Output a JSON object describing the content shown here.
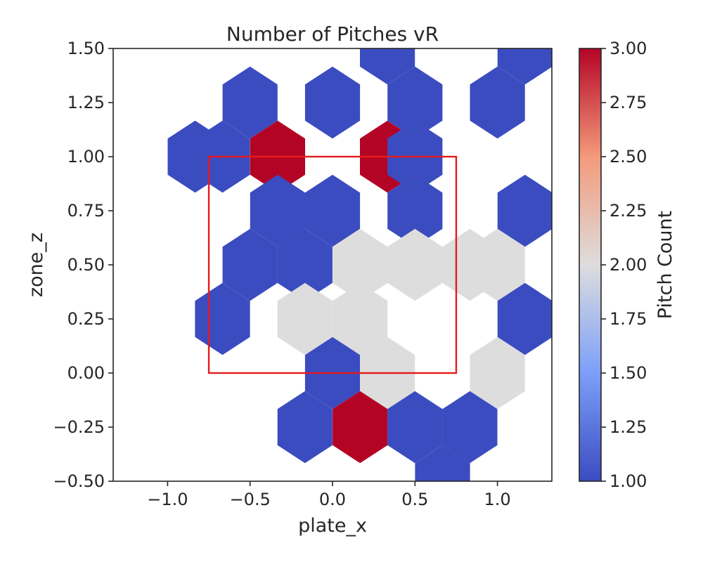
{
  "chart_data": {
    "type": "heatmap",
    "subtype": "hexbin",
    "title": "Number of Pitches vR",
    "xlabel": "plate_x",
    "ylabel": "zone_z",
    "xlim": [
      -1.33,
      1.33
    ],
    "ylim": [
      -0.5,
      1.5
    ],
    "xticks": [
      -1.0,
      -0.5,
      0.0,
      0.5,
      1.0
    ],
    "xtick_labels": [
      "−1.0",
      "−0.5",
      "0.0",
      "0.5",
      "1.0"
    ],
    "yticks": [
      -0.5,
      -0.25,
      0.0,
      0.25,
      0.5,
      0.75,
      1.0,
      1.25,
      1.5
    ],
    "ytick_labels": [
      "−0.50",
      "−0.25",
      "0.00",
      "0.25",
      "0.50",
      "0.75",
      "1.00",
      "1.25",
      "1.50"
    ],
    "hex_half_width": 0.1667,
    "hex_half_height": 0.1667,
    "hexbins": [
      {
        "x": -0.5,
        "y": 1.25,
        "count": 1
      },
      {
        "x": 0.0,
        "y": 1.25,
        "count": 1
      },
      {
        "x": 0.333,
        "y": 1.5,
        "count": 1
      },
      {
        "x": 0.5,
        "y": 1.25,
        "count": 1
      },
      {
        "x": 1.0,
        "y": 1.25,
        "count": 1
      },
      {
        "x": 1.167,
        "y": 1.5,
        "count": 1
      },
      {
        "x": -0.833,
        "y": 1.0,
        "count": 1
      },
      {
        "x": -0.667,
        "y": 1.0,
        "count": 1
      },
      {
        "x": -0.333,
        "y": 1.0,
        "count": 3
      },
      {
        "x": 0.333,
        "y": 1.0,
        "count": 3
      },
      {
        "x": 0.5,
        "y": 1.0,
        "count": 1
      },
      {
        "x": -0.333,
        "y": 0.75,
        "count": 1
      },
      {
        "x": 0.0,
        "y": 0.75,
        "count": 1
      },
      {
        "x": 0.5,
        "y": 0.75,
        "count": 1
      },
      {
        "x": 1.167,
        "y": 0.75,
        "count": 1
      },
      {
        "x": -0.5,
        "y": 0.5,
        "count": 1
      },
      {
        "x": -0.167,
        "y": 0.5,
        "count": 1
      },
      {
        "x": 0.167,
        "y": 0.5,
        "count": 2
      },
      {
        "x": 0.5,
        "y": 0.5,
        "count": 2
      },
      {
        "x": 0.833,
        "y": 0.5,
        "count": 2
      },
      {
        "x": 1.0,
        "y": 0.5,
        "count": 2
      },
      {
        "x": -0.667,
        "y": 0.25,
        "count": 1
      },
      {
        "x": -0.167,
        "y": 0.25,
        "count": 2
      },
      {
        "x": 0.167,
        "y": 0.25,
        "count": 2
      },
      {
        "x": 1.167,
        "y": 0.25,
        "count": 1
      },
      {
        "x": 0.0,
        "y": 0.0,
        "count": 1
      },
      {
        "x": 0.333,
        "y": 0.0,
        "count": 2
      },
      {
        "x": 1.0,
        "y": 0.0,
        "count": 2
      },
      {
        "x": -0.167,
        "y": -0.25,
        "count": 1
      },
      {
        "x": 0.167,
        "y": -0.25,
        "count": 3
      },
      {
        "x": 0.5,
        "y": -0.25,
        "count": 1
      },
      {
        "x": 0.833,
        "y": -0.25,
        "count": 1
      },
      {
        "x": 0.667,
        "y": -0.5,
        "count": 1
      }
    ],
    "strike_zone": {
      "x0": -0.75,
      "x1": 0.75,
      "y0": 0.0,
      "y1": 1.0,
      "color": "#e41a1c"
    },
    "colorbar": {
      "label": "Pitch Count",
      "colormap": "coolwarm",
      "vmin": 1.0,
      "vmax": 3.0,
      "ticks": [
        1.0,
        1.25,
        1.5,
        1.75,
        2.0,
        2.25,
        2.5,
        2.75,
        3.0
      ],
      "tick_labels": [
        "1.00",
        "1.25",
        "1.50",
        "1.75",
        "2.00",
        "2.25",
        "2.50",
        "2.75",
        "3.00"
      ]
    },
    "grid": false,
    "legend": "none"
  }
}
